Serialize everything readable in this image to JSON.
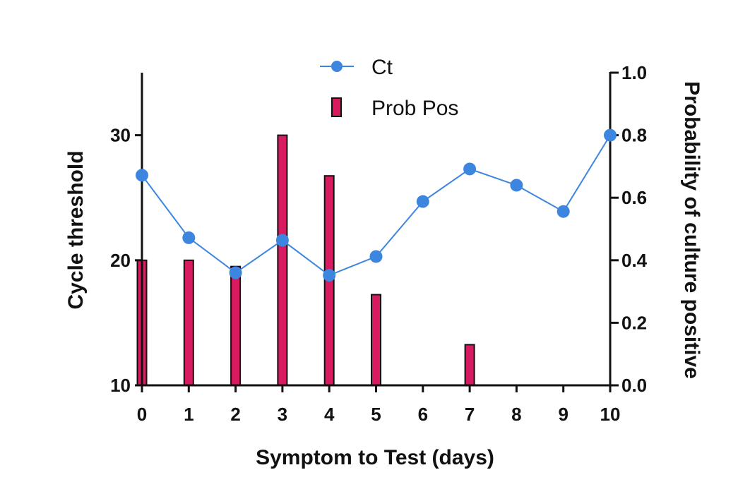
{
  "chart_data": {
    "type": "bar+line",
    "x": [
      0,
      1,
      2,
      3,
      4,
      5,
      6,
      7,
      8,
      9,
      10
    ],
    "x_tick_labels": [
      "0",
      "1",
      "2",
      "3",
      "4",
      "5",
      "6",
      "7",
      "8",
      "9",
      "10"
    ],
    "xlabel": "Symptom to Test (days)",
    "ylabel_left": "Cycle threshold",
    "ylabel_right": "Probability of culture positive",
    "ylim_left": [
      10,
      35
    ],
    "ylim_right": [
      0,
      1.0
    ],
    "y_ticks_left": [
      10,
      20,
      30
    ],
    "y_tick_labels_left": [
      "10",
      "20",
      "30"
    ],
    "y_ticks_right": [
      0,
      0.2,
      0.4,
      0.6,
      0.8,
      1.0
    ],
    "y_tick_labels_right": [
      "0.0",
      "0.2",
      "0.4",
      "0.6",
      "0.8",
      "1.0"
    ],
    "legend_position": "top-center",
    "series": [
      {
        "name": "Ct",
        "kind": "line",
        "axis": "left",
        "color": "#3d86e0",
        "values": [
          26.8,
          21.8,
          19.0,
          21.6,
          18.8,
          20.3,
          24.7,
          27.3,
          26.0,
          23.9,
          30.0
        ]
      },
      {
        "name": "Prob Pos",
        "kind": "bar",
        "axis": "right",
        "color": "#d81b60",
        "values": [
          0.4,
          0.4,
          0.38,
          0.8,
          0.67,
          0.29,
          0,
          0.13,
          0,
          0,
          0
        ]
      }
    ]
  }
}
